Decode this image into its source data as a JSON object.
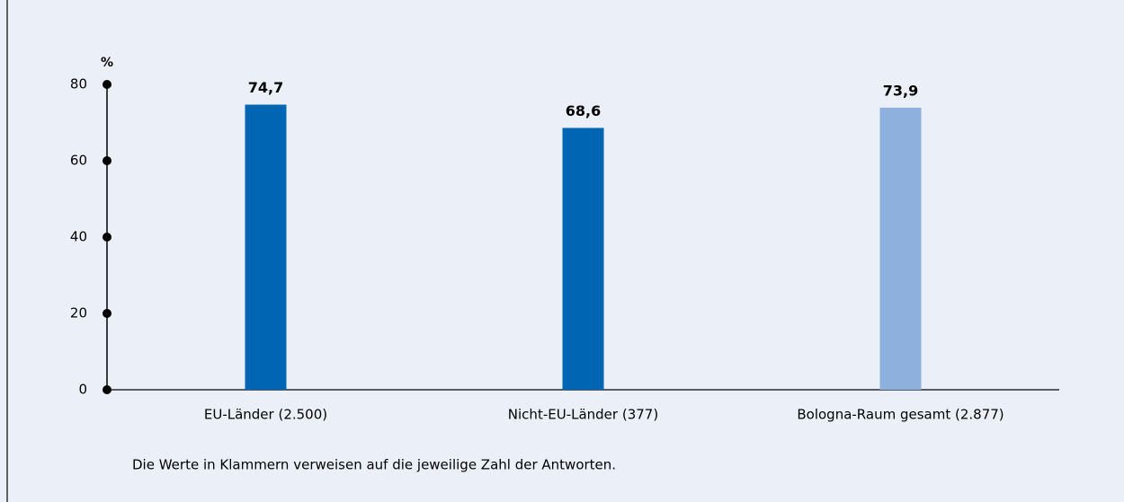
{
  "chart_data": {
    "type": "bar",
    "y_label": "%",
    "categories": [
      "EU-Länder (2.500)",
      "Nicht-EU-Länder (377)",
      "Bologna-Raum gesamt (2.877)"
    ],
    "values": [
      74.7,
      68.6,
      73.9
    ],
    "value_labels": [
      "74,7",
      "68,6",
      "73,9"
    ],
    "colors": [
      "#0066b3",
      "#0066b3",
      "#8eb0dc"
    ],
    "ylim": [
      0,
      80
    ],
    "yticks": [
      0,
      20,
      40,
      60,
      80
    ],
    "note": "Die Werte in Klammern verweisen auf die jeweilige Zahl der Antworten."
  }
}
